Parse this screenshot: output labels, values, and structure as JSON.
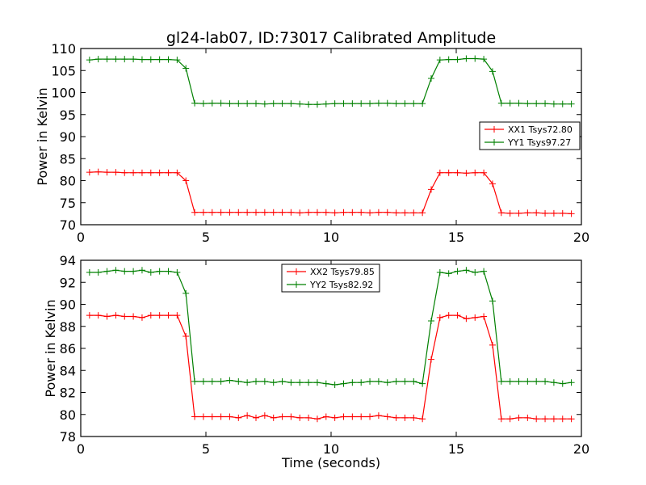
{
  "chart_data": [
    {
      "type": "line",
      "title": "gl24-lab07, ID:73017 Calibrated Amplitude",
      "xlabel": "",
      "ylabel": "Power in Kelvin",
      "xlim": [
        0,
        20
      ],
      "ylim": [
        70,
        110
      ],
      "xticks": [
        "0",
        "5",
        "10",
        "15",
        "20"
      ],
      "yticks": [
        "70",
        "75",
        "80",
        "85",
        "90",
        "95",
        "100",
        "105",
        "110"
      ],
      "legend_position": "right",
      "grid": false,
      "x": [
        0.35,
        0.7,
        1.05,
        1.4,
        1.75,
        2.1,
        2.45,
        2.8,
        3.15,
        3.5,
        3.85,
        4.2,
        4.55,
        4.9,
        5.25,
        5.6,
        5.95,
        6.3,
        6.65,
        7.0,
        7.35,
        7.7,
        8.05,
        8.4,
        8.75,
        9.1,
        9.45,
        9.8,
        10.15,
        10.5,
        10.85,
        11.2,
        11.55,
        11.9,
        12.25,
        12.6,
        12.95,
        13.3,
        13.65,
        14.0,
        14.35,
        14.7,
        15.05,
        15.4,
        15.75,
        16.1,
        16.45,
        16.8,
        17.15,
        17.5,
        17.85,
        18.2,
        18.55,
        18.9,
        19.25,
        19.6
      ],
      "series": [
        {
          "name": "XX1 Tsys72.80",
          "color": "#ff0000",
          "values": [
            81.9,
            82.0,
            81.9,
            81.9,
            81.8,
            81.8,
            81.8,
            81.8,
            81.8,
            81.8,
            81.8,
            80.0,
            72.8,
            72.8,
            72.8,
            72.8,
            72.8,
            72.8,
            72.8,
            72.8,
            72.8,
            72.8,
            72.8,
            72.8,
            72.7,
            72.8,
            72.8,
            72.8,
            72.7,
            72.8,
            72.8,
            72.8,
            72.7,
            72.8,
            72.8,
            72.7,
            72.7,
            72.7,
            72.7,
            78.0,
            81.8,
            81.8,
            81.8,
            81.7,
            81.8,
            81.8,
            79.3,
            72.7,
            72.6,
            72.6,
            72.7,
            72.7,
            72.6,
            72.6,
            72.6,
            72.5
          ]
        },
        {
          "name": "YY1 Tsys97.27",
          "color": "#008000",
          "values": [
            107.4,
            107.6,
            107.6,
            107.6,
            107.6,
            107.6,
            107.5,
            107.5,
            107.5,
            107.5,
            107.4,
            105.5,
            97.6,
            97.5,
            97.6,
            97.6,
            97.5,
            97.5,
            97.5,
            97.5,
            97.4,
            97.5,
            97.5,
            97.5,
            97.4,
            97.3,
            97.3,
            97.4,
            97.5,
            97.5,
            97.5,
            97.5,
            97.5,
            97.6,
            97.6,
            97.5,
            97.5,
            97.5,
            97.5,
            103.2,
            107.4,
            107.5,
            107.5,
            107.7,
            107.7,
            107.6,
            104.8,
            97.6,
            97.6,
            97.6,
            97.5,
            97.5,
            97.5,
            97.4,
            97.4,
            97.4
          ]
        }
      ]
    },
    {
      "type": "line",
      "title": "",
      "xlabel": "Time (seconds)",
      "ylabel": "Power in Kelvin",
      "xlim": [
        0,
        20
      ],
      "ylim": [
        78,
        94
      ],
      "xticks": [
        "0",
        "5",
        "10",
        "15",
        "20"
      ],
      "yticks": [
        "78",
        "80",
        "82",
        "84",
        "86",
        "88",
        "90",
        "92",
        "94"
      ],
      "legend_position": "upper center",
      "grid": false,
      "x": [
        0.35,
        0.7,
        1.05,
        1.4,
        1.75,
        2.1,
        2.45,
        2.8,
        3.15,
        3.5,
        3.85,
        4.2,
        4.55,
        4.9,
        5.25,
        5.6,
        5.95,
        6.3,
        6.65,
        7.0,
        7.35,
        7.7,
        8.05,
        8.4,
        8.75,
        9.1,
        9.45,
        9.8,
        10.15,
        10.5,
        10.85,
        11.2,
        11.55,
        11.9,
        12.25,
        12.6,
        12.95,
        13.3,
        13.65,
        14.0,
        14.35,
        14.7,
        15.05,
        15.4,
        15.75,
        16.1,
        16.45,
        16.8,
        17.15,
        17.5,
        17.85,
        18.2,
        18.55,
        18.9,
        19.25,
        19.6
      ],
      "series": [
        {
          "name": "XX2 Tsys79.85",
          "color": "#ff0000",
          "values": [
            89.0,
            89.0,
            88.9,
            89.0,
            88.9,
            88.9,
            88.8,
            89.0,
            89.0,
            89.0,
            89.0,
            87.1,
            79.8,
            79.8,
            79.8,
            79.8,
            79.8,
            79.7,
            79.9,
            79.7,
            79.9,
            79.7,
            79.8,
            79.8,
            79.7,
            79.7,
            79.6,
            79.8,
            79.7,
            79.8,
            79.8,
            79.8,
            79.8,
            79.9,
            79.8,
            79.7,
            79.7,
            79.7,
            79.6,
            85.0,
            88.8,
            89.0,
            89.0,
            88.7,
            88.8,
            88.9,
            86.3,
            79.6,
            79.6,
            79.7,
            79.7,
            79.6,
            79.6,
            79.6,
            79.6,
            79.6
          ]
        },
        {
          "name": "YY2 Tsys82.92",
          "color": "#008000",
          "values": [
            92.9,
            92.9,
            93.0,
            93.1,
            93.0,
            93.0,
            93.1,
            92.9,
            93.0,
            93.0,
            92.9,
            91.0,
            83.0,
            83.0,
            83.0,
            83.0,
            83.1,
            83.0,
            82.9,
            83.0,
            83.0,
            82.9,
            83.0,
            82.9,
            82.9,
            82.9,
            82.9,
            82.8,
            82.7,
            82.8,
            82.9,
            82.9,
            83.0,
            83.0,
            82.9,
            83.0,
            83.0,
            83.0,
            82.8,
            88.5,
            92.9,
            92.8,
            93.0,
            93.1,
            92.9,
            93.0,
            90.3,
            83.0,
            83.0,
            83.0,
            83.0,
            83.0,
            83.0,
            82.9,
            82.8,
            82.9
          ]
        }
      ]
    }
  ]
}
